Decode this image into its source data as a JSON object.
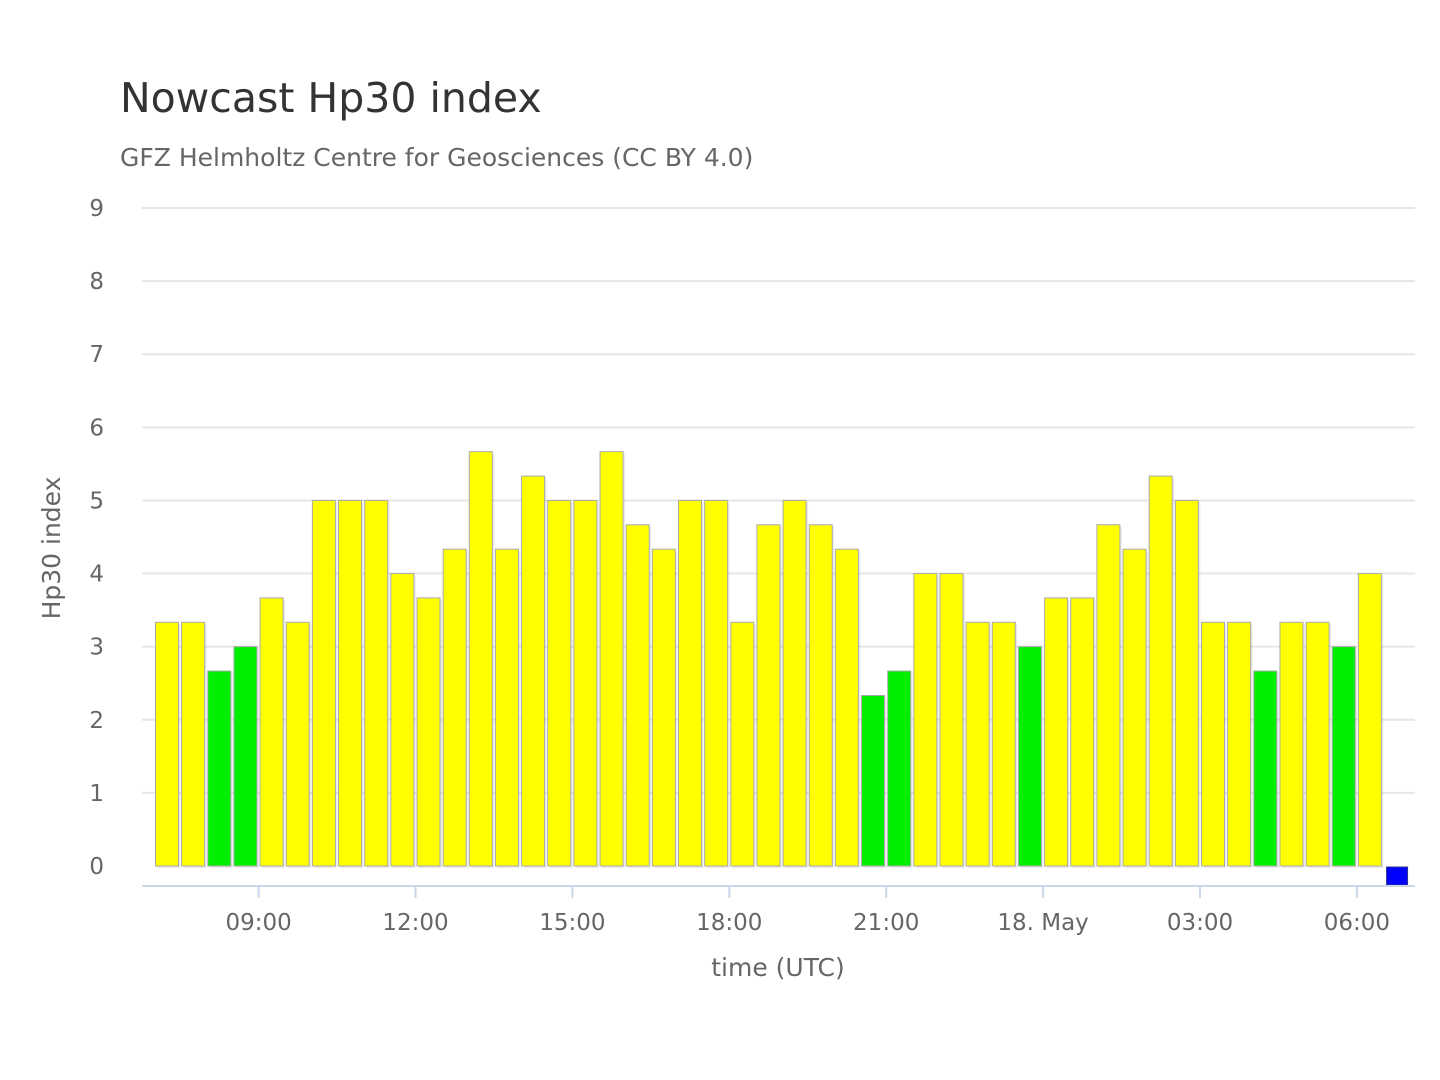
{
  "chart_data": {
    "type": "bar",
    "title": "Nowcast Hp30 index",
    "subtitle": "GFZ Helmholtz Centre for Geosciences (CC BY 4.0)",
    "xlabel": "time (UTC)",
    "ylabel": "Hp30 index",
    "ylim": [
      0,
      9
    ],
    "yticks": [
      0,
      1,
      2,
      3,
      4,
      5,
      6,
      7,
      8,
      9
    ],
    "grid": true,
    "xtick_labels": [
      "09:00",
      "12:00",
      "15:00",
      "18:00",
      "21:00",
      "18. May",
      "03:00",
      "06:00"
    ],
    "start_time": "17 May 07:00",
    "interval_minutes": 30,
    "values": [
      3.333,
      3.333,
      2.667,
      3.0,
      3.667,
      3.333,
      5.0,
      5.0,
      5.0,
      4.0,
      3.667,
      4.333,
      5.667,
      4.333,
      5.333,
      5.0,
      5.0,
      5.667,
      4.667,
      4.333,
      5.0,
      5.0,
      3.333,
      4.667,
      5.0,
      4.667,
      4.333,
      2.333,
      2.667,
      4.0,
      4.0,
      3.333,
      3.333,
      3.0,
      3.667,
      3.667,
      4.667,
      4.333,
      5.333,
      5.0,
      3.333,
      3.333,
      2.667,
      3.333,
      3.333,
      3.0,
      4.0,
      0
    ],
    "bar_colors": [
      "#ffff00",
      "#ffff00",
      "#00ee00",
      "#00ee00",
      "#ffff00",
      "#ffff00",
      "#ffff00",
      "#ffff00",
      "#ffff00",
      "#ffff00",
      "#ffff00",
      "#ffff00",
      "#ffff00",
      "#ffff00",
      "#ffff00",
      "#ffff00",
      "#ffff00",
      "#ffff00",
      "#ffff00",
      "#ffff00",
      "#ffff00",
      "#ffff00",
      "#ffff00",
      "#ffff00",
      "#ffff00",
      "#ffff00",
      "#ffff00",
      "#00ee00",
      "#00ee00",
      "#ffff00",
      "#ffff00",
      "#ffff00",
      "#ffff00",
      "#00ee00",
      "#ffff00",
      "#ffff00",
      "#ffff00",
      "#ffff00",
      "#ffff00",
      "#ffff00",
      "#ffff00",
      "#ffff00",
      "#00ee00",
      "#ffff00",
      "#ffff00",
      "#00ee00",
      "#ffff00",
      "#0000ff"
    ],
    "colors": {
      "quiet": "#00ee00",
      "active": "#ffff00",
      "current": "#0000ff",
      "grid": "#e6e6e6",
      "axis": "#ccd6eb"
    }
  }
}
